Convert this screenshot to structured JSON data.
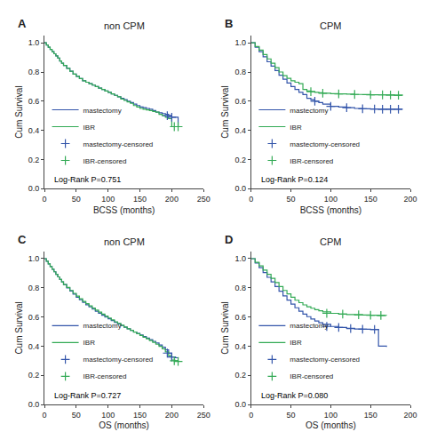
{
  "chart_data": [
    {
      "type": "line",
      "title": "non CPM",
      "xlabel": "BCSS (months)",
      "ylabel": "Cum Survival",
      "annotations": [
        "A",
        "Log-Rank P=0.751"
      ],
      "xlim": [
        0,
        250
      ],
      "ylim": [
        0.0,
        1.05
      ],
      "xticks": [
        0,
        50,
        100,
        150,
        200,
        250
      ],
      "yticks": [
        {
          "value": 0.0,
          "label": "0.0"
        },
        0.2,
        0.4,
        0.6,
        0.8,
        {
          "value": 1.0,
          "label": "1.0"
        }
      ],
      "grid": false,
      "legend": "lower left",
      "series": [
        {
          "name": "mastectomy",
          "color": "#3355aa",
          "line_style": "step",
          "x": [
            0,
            3,
            6,
            9,
            12,
            15,
            18,
            21,
            24,
            27,
            30,
            35,
            40,
            45,
            50,
            55,
            60,
            65,
            70,
            75,
            80,
            85,
            90,
            95,
            100,
            105,
            110,
            115,
            120,
            125,
            130,
            135,
            140,
            145,
            150,
            155,
            160,
            165,
            170,
            175,
            180,
            185,
            190,
            195,
            200,
            205,
            210
          ],
          "values": [
            1.0,
            0.985,
            0.97,
            0.955,
            0.94,
            0.925,
            0.91,
            0.895,
            0.875,
            0.86,
            0.845,
            0.825,
            0.805,
            0.785,
            0.77,
            0.755,
            0.74,
            0.73,
            0.72,
            0.71,
            0.7,
            0.69,
            0.68,
            0.67,
            0.66,
            0.65,
            0.64,
            0.63,
            0.62,
            0.61,
            0.6,
            0.59,
            0.58,
            0.57,
            0.56,
            0.555,
            0.55,
            0.545,
            0.535,
            0.525,
            0.52,
            0.515,
            0.51,
            0.5,
            0.49,
            0.49,
            0.425
          ]
        },
        {
          "name": "IBR",
          "color": "#33aa55",
          "line_style": "step",
          "x": [
            0,
            3,
            6,
            9,
            12,
            15,
            18,
            21,
            24,
            27,
            30,
            35,
            40,
            45,
            50,
            55,
            60,
            65,
            70,
            75,
            80,
            85,
            90,
            95,
            100,
            105,
            110,
            115,
            120,
            125,
            130,
            135,
            140,
            145,
            150,
            155,
            160,
            165,
            170,
            175,
            180,
            185,
            190,
            195,
            200,
            205,
            210
          ],
          "values": [
            1.0,
            0.985,
            0.97,
            0.955,
            0.94,
            0.925,
            0.91,
            0.895,
            0.875,
            0.86,
            0.845,
            0.825,
            0.805,
            0.785,
            0.77,
            0.755,
            0.74,
            0.73,
            0.72,
            0.71,
            0.7,
            0.69,
            0.68,
            0.67,
            0.66,
            0.65,
            0.64,
            0.63,
            0.615,
            0.605,
            0.595,
            0.585,
            0.57,
            0.56,
            0.55,
            0.545,
            0.54,
            0.535,
            0.53,
            0.525,
            0.51,
            0.5,
            0.49,
            0.48,
            0.425,
            0.425,
            0.425
          ]
        },
        {
          "name": "mastectomy-censored",
          "type": "scatter",
          "marker": "+",
          "color": "#3355aa",
          "x": [
            193,
            200
          ],
          "values": [
            0.5,
            0.49
          ]
        },
        {
          "name": "IBR-censored",
          "type": "scatter",
          "marker": "+",
          "color": "#33aa55",
          "x": [
            204,
            210
          ],
          "values": [
            0.425,
            0.425
          ]
        }
      ]
    },
    {
      "type": "line",
      "title": "CPM",
      "xlabel": "BCSS (months)",
      "ylabel": "Cum Survival",
      "annotations": [
        "B",
        "Log-Rank P=0.124"
      ],
      "xlim": [
        0,
        200
      ],
      "ylim": [
        0.0,
        1.05
      ],
      "xticks": [
        0,
        50,
        100,
        150,
        200
      ],
      "yticks": [
        {
          "value": 0.0,
          "label": "0.0"
        },
        0.2,
        0.4,
        0.6,
        0.8,
        {
          "value": 1.0,
          "label": "1.0"
        }
      ],
      "grid": false,
      "legend": "lower left",
      "series": [
        {
          "name": "mastectomy",
          "color": "#3355aa",
          "line_style": "step",
          "x": [
            0,
            5,
            10,
            15,
            20,
            25,
            30,
            35,
            40,
            45,
            50,
            55,
            60,
            65,
            70,
            75,
            80,
            85,
            90,
            100,
            110,
            120,
            130,
            140,
            150,
            160,
            170,
            180,
            190
          ],
          "values": [
            1.0,
            0.97,
            0.94,
            0.905,
            0.87,
            0.84,
            0.81,
            0.778,
            0.75,
            0.725,
            0.7,
            0.68,
            0.66,
            0.645,
            0.62,
            0.61,
            0.6,
            0.59,
            0.58,
            0.565,
            0.56,
            0.555,
            0.55,
            0.548,
            0.546,
            0.545,
            0.545,
            0.545,
            0.545
          ]
        },
        {
          "name": "IBR",
          "color": "#33aa55",
          "line_style": "step",
          "x": [
            0,
            5,
            10,
            15,
            20,
            25,
            30,
            35,
            40,
            45,
            50,
            55,
            60,
            65,
            70,
            75,
            80,
            85,
            90,
            100,
            110,
            120,
            130,
            140,
            150,
            160,
            170,
            180,
            190
          ],
          "values": [
            1.0,
            0.975,
            0.95,
            0.92,
            0.89,
            0.86,
            0.83,
            0.8,
            0.775,
            0.756,
            0.74,
            0.73,
            0.72,
            0.68,
            0.67,
            0.665,
            0.66,
            0.658,
            0.655,
            0.652,
            0.65,
            0.648,
            0.646,
            0.645,
            0.644,
            0.643,
            0.642,
            0.641,
            0.64
          ]
        },
        {
          "name": "mastectomy-censored",
          "type": "scatter",
          "marker": "+",
          "color": "#3355aa",
          "x": [
            80,
            100,
            120,
            140,
            155,
            165,
            175,
            185
          ],
          "values": [
            0.6,
            0.565,
            0.555,
            0.548,
            0.546,
            0.545,
            0.545,
            0.545
          ]
        },
        {
          "name": "IBR-censored",
          "type": "scatter",
          "marker": "+",
          "color": "#33aa55",
          "x": [
            75,
            90,
            110,
            130,
            150,
            165,
            175,
            185
          ],
          "values": [
            0.665,
            0.655,
            0.65,
            0.646,
            0.644,
            0.643,
            0.642,
            0.641
          ]
        }
      ]
    },
    {
      "type": "line",
      "title": "non CPM",
      "xlabel": "OS (months)",
      "ylabel": "Cum Survival",
      "annotations": [
        "C",
        "Log-Rank P=0.727"
      ],
      "xlim": [
        0,
        250
      ],
      "ylim": [
        0.0,
        1.05
      ],
      "xticks": [
        0,
        50,
        100,
        150,
        200,
        250
      ],
      "yticks": [
        {
          "value": 0.0,
          "label": "0.0"
        },
        0.2,
        0.4,
        0.6,
        0.8,
        {
          "value": 1.0,
          "label": "1.0"
        }
      ],
      "grid": false,
      "legend": "lower left",
      "series": [
        {
          "name": "mastectomy",
          "color": "#3355aa",
          "line_style": "step",
          "x": [
            0,
            3,
            6,
            9,
            12,
            15,
            18,
            21,
            24,
            27,
            30,
            35,
            40,
            45,
            50,
            55,
            60,
            65,
            70,
            75,
            80,
            85,
            90,
            95,
            100,
            105,
            110,
            115,
            120,
            125,
            130,
            135,
            140,
            145,
            150,
            155,
            160,
            165,
            170,
            175,
            180,
            185,
            190,
            195,
            200,
            205,
            210
          ],
          "values": [
            1.0,
            0.982,
            0.964,
            0.946,
            0.928,
            0.91,
            0.893,
            0.875,
            0.857,
            0.84,
            0.822,
            0.8,
            0.778,
            0.757,
            0.736,
            0.718,
            0.7,
            0.684,
            0.669,
            0.654,
            0.64,
            0.626,
            0.612,
            0.599,
            0.587,
            0.575,
            0.563,
            0.552,
            0.541,
            0.53,
            0.519,
            0.508,
            0.497,
            0.487,
            0.476,
            0.466,
            0.455,
            0.444,
            0.433,
            0.421,
            0.408,
            0.393,
            0.375,
            0.352,
            0.325,
            0.32,
            0.315
          ]
        },
        {
          "name": "IBR",
          "color": "#33aa55",
          "line_style": "step",
          "x": [
            0,
            3,
            6,
            9,
            12,
            15,
            18,
            21,
            24,
            27,
            30,
            35,
            40,
            45,
            50,
            55,
            60,
            65,
            70,
            75,
            80,
            85,
            90,
            95,
            100,
            105,
            110,
            115,
            120,
            125,
            130,
            135,
            140,
            145,
            150,
            155,
            160,
            165,
            170,
            175,
            180,
            185,
            190,
            195,
            200,
            205,
            210
          ],
          "values": [
            1.0,
            0.982,
            0.964,
            0.946,
            0.928,
            0.91,
            0.893,
            0.875,
            0.857,
            0.84,
            0.822,
            0.802,
            0.782,
            0.762,
            0.743,
            0.725,
            0.707,
            0.691,
            0.676,
            0.661,
            0.647,
            0.633,
            0.619,
            0.606,
            0.593,
            0.58,
            0.567,
            0.555,
            0.543,
            0.531,
            0.519,
            0.508,
            0.496,
            0.485,
            0.473,
            0.461,
            0.45,
            0.438,
            0.426,
            0.413,
            0.398,
            0.381,
            0.36,
            0.335,
            0.305,
            0.3,
            0.295
          ]
        },
        {
          "name": "mastectomy-censored",
          "type": "scatter",
          "marker": "+",
          "color": "#3355aa",
          "x": [
            193,
            200
          ],
          "values": [
            0.352,
            0.325
          ]
        },
        {
          "name": "IBR-censored",
          "type": "scatter",
          "marker": "+",
          "color": "#33aa55",
          "x": [
            204,
            210
          ],
          "values": [
            0.3,
            0.295
          ]
        }
      ]
    },
    {
      "type": "line",
      "title": "CPM",
      "xlabel": "OS (months)",
      "ylabel": "Cum Survival",
      "annotations": [
        "D",
        "Log-Rank P=0.080"
      ],
      "xlim": [
        0,
        200
      ],
      "ylim": [
        0.0,
        1.05
      ],
      "xticks": [
        0,
        50,
        100,
        150,
        200
      ],
      "yticks": [
        {
          "value": 0.0,
          "label": "0.0"
        },
        0.2,
        0.4,
        0.6,
        0.8,
        {
          "value": 1.0,
          "label": "1.0"
        }
      ],
      "grid": false,
      "legend": "lower left",
      "series": [
        {
          "name": "mastectomy",
          "color": "#3355aa",
          "line_style": "step",
          "x": [
            0,
            5,
            10,
            15,
            20,
            25,
            30,
            35,
            40,
            45,
            50,
            55,
            60,
            65,
            70,
            75,
            80,
            85,
            90,
            100,
            110,
            120,
            130,
            140,
            150,
            160,
            170
          ],
          "values": [
            1.0,
            0.97,
            0.938,
            0.905,
            0.872,
            0.84,
            0.808,
            0.776,
            0.745,
            0.716,
            0.688,
            0.663,
            0.64,
            0.62,
            0.602,
            0.586,
            0.572,
            0.56,
            0.549,
            0.535,
            0.528,
            0.522,
            0.518,
            0.516,
            0.514,
            0.4,
            0.395
          ]
        },
        {
          "name": "IBR",
          "color": "#33aa55",
          "line_style": "step",
          "x": [
            0,
            5,
            10,
            15,
            20,
            25,
            30,
            35,
            40,
            45,
            50,
            55,
            60,
            65,
            70,
            75,
            80,
            85,
            90,
            100,
            110,
            120,
            130,
            140,
            150,
            160,
            170
          ],
          "values": [
            1.0,
            0.975,
            0.95,
            0.922,
            0.893,
            0.865,
            0.836,
            0.808,
            0.782,
            0.758,
            0.735,
            0.715,
            0.698,
            0.683,
            0.67,
            0.66,
            0.65,
            0.642,
            0.635,
            0.625,
            0.62,
            0.617,
            0.615,
            0.613,
            0.612,
            0.611,
            0.61
          ]
        },
        {
          "name": "mastectomy-censored",
          "type": "scatter",
          "marker": "+",
          "color": "#3355aa",
          "x": [
            95,
            110,
            125,
            140,
            155
          ],
          "values": [
            0.535,
            0.528,
            0.52,
            0.516,
            0.514
          ]
        },
        {
          "name": "IBR-censored",
          "type": "scatter",
          "marker": "+",
          "color": "#33aa55",
          "x": [
            95,
            115,
            135,
            150,
            163
          ],
          "values": [
            0.625,
            0.62,
            0.615,
            0.612,
            0.611
          ]
        }
      ]
    }
  ]
}
